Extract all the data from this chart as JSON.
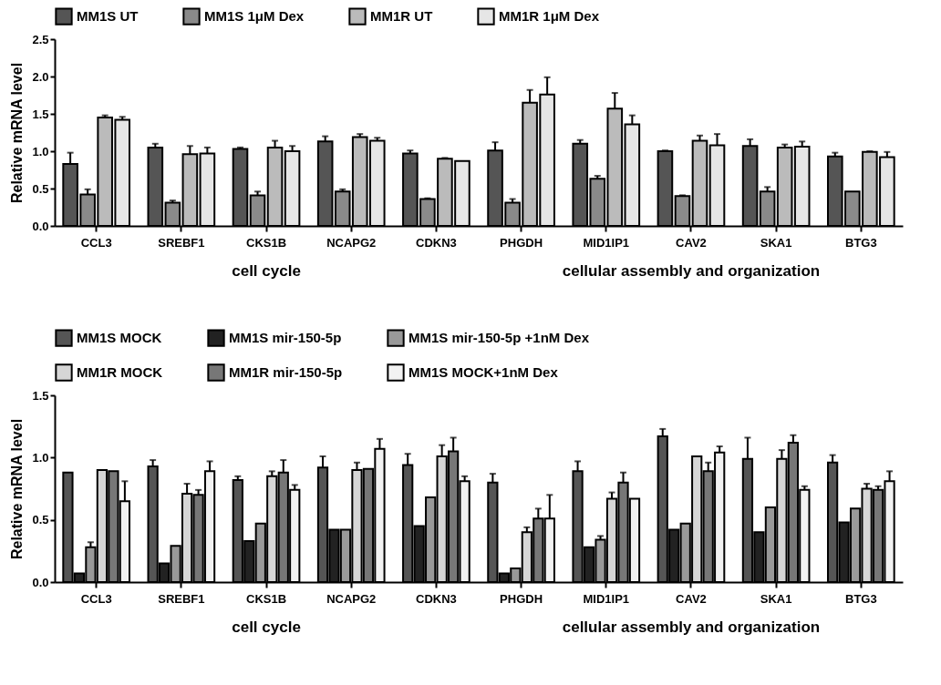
{
  "chart_data": [
    {
      "type": "bar",
      "ylabel": "Relative mRNA level",
      "categories": [
        "CCL3",
        "SREBF1",
        "CKS1B",
        "NCAPG2",
        "CDKN3",
        "PHGDH",
        "MID1IP1",
        "CAV2",
        "SKA1",
        "BTG3"
      ],
      "ylim": [
        0,
        2.5
      ],
      "yticks": [
        {
          "value": 0,
          "label": "0.0"
        },
        0.5,
        {
          "value": 1,
          "label": "1.0"
        },
        1.5,
        {
          "value": 2,
          "label": "2.0"
        },
        2.5
      ],
      "grid": false,
      "legend": "top",
      "annotations": [
        "cell cycle",
        "cellular assembly and organization"
      ],
      "series": [
        {
          "name": "MM1S UT",
          "color": "#555555",
          "values": [
            0.83,
            1.05,
            1.03,
            1.13,
            0.97,
            1.01,
            1.1,
            1.0,
            1.07,
            0.93
          ],
          "errors": [
            0.15,
            0.05,
            0.02,
            0.07,
            0.04,
            0.11,
            0.05,
            0.01,
            0.09,
            0.05
          ]
        },
        {
          "name": "MM1S 1μM Dex",
          "color": "#8a8a8a",
          "values": [
            0.42,
            0.31,
            0.41,
            0.46,
            0.36,
            0.31,
            0.63,
            0.4,
            0.46,
            0.46
          ],
          "errors": [
            0.07,
            0.03,
            0.05,
            0.03,
            0.01,
            0.05,
            0.04,
            0.01,
            0.06,
            null
          ]
        },
        {
          "name": "MM1R UT",
          "color": "#bbbbbb",
          "values": [
            1.45,
            0.96,
            1.05,
            1.19,
            0.9,
            1.65,
            1.57,
            1.14,
            1.05,
            0.99
          ],
          "errors": [
            0.03,
            0.11,
            0.09,
            0.04,
            0.01,
            0.17,
            0.21,
            0.07,
            0.04,
            0.01
          ]
        },
        {
          "name": "MM1R 1μM Dex",
          "color": "#e6e6e6",
          "values": [
            1.42,
            0.97,
            1.0,
            1.14,
            0.87,
            1.76,
            1.36,
            1.08,
            1.06,
            0.92
          ],
          "errors": [
            0.04,
            0.08,
            0.07,
            0.04,
            null,
            0.23,
            0.12,
            0.15,
            0.07,
            0.07
          ]
        }
      ]
    },
    {
      "type": "bar",
      "ylabel": "Relative mRNA level",
      "categories": [
        "CCL3",
        "SREBF1",
        "CKS1B",
        "NCAPG2",
        "CDKN3",
        "PHGDH",
        "MID1IP1",
        "CAV2",
        "SKA1",
        "BTG3"
      ],
      "ylim": [
        0,
        1.5
      ],
      "yticks": [
        {
          "value": 0,
          "label": "0.0"
        },
        0.5,
        {
          "value": 1,
          "label": "1.0"
        },
        1.5
      ],
      "grid": false,
      "legend": "top",
      "annotations": [
        "cell cycle",
        "cellular assembly and organization"
      ],
      "series": [
        {
          "name": "MM1S MOCK",
          "color": "#555555",
          "values": [
            0.88,
            0.93,
            0.82,
            0.92,
            0.94,
            0.8,
            0.89,
            1.17,
            0.99,
            0.96
          ],
          "errors": [
            null,
            0.05,
            0.03,
            0.09,
            0.09,
            0.07,
            0.08,
            0.06,
            0.17,
            0.06
          ]
        },
        {
          "name": "MM1S mir-150-5p",
          "color": "#222222",
          "values": [
            0.07,
            0.15,
            0.33,
            0.42,
            0.45,
            0.07,
            0.28,
            0.42,
            0.4,
            0.48
          ],
          "errors": [
            null,
            null,
            null,
            null,
            null,
            null,
            null,
            null,
            null,
            null
          ]
        },
        {
          "name": "MM1S mir-150-5p +1nM Dex",
          "color": "#999999",
          "values": [
            0.28,
            0.29,
            0.47,
            0.42,
            0.68,
            0.11,
            0.34,
            0.47,
            0.6,
            0.59
          ],
          "errors": [
            0.04,
            null,
            null,
            null,
            null,
            null,
            0.03,
            null,
            null,
            null
          ]
        },
        {
          "name": "MM1R MOCK",
          "color": "#d6d6d6",
          "values": [
            0.9,
            0.71,
            0.85,
            0.9,
            1.01,
            0.4,
            0.67,
            1.01,
            0.99,
            0.75
          ],
          "errors": [
            null,
            0.08,
            0.04,
            0.06,
            0.09,
            0.04,
            0.05,
            null,
            0.07,
            0.04
          ]
        },
        {
          "name": "MM1R mir-150-5p",
          "color": "#777777",
          "values": [
            0.89,
            0.7,
            0.88,
            0.91,
            1.05,
            0.51,
            0.8,
            0.89,
            1.12,
            0.74
          ],
          "errors": [
            null,
            0.04,
            0.1,
            null,
            0.11,
            0.08,
            0.08,
            0.07,
            0.06,
            0.03
          ]
        },
        {
          "name": "MM1S MOCK+1nM Dex",
          "color": "#f2f2f2",
          "values": [
            0.65,
            0.89,
            0.74,
            1.07,
            0.81,
            0.51,
            0.67,
            1.04,
            0.74,
            0.81
          ],
          "errors": [
            0.16,
            0.08,
            0.04,
            0.08,
            0.04,
            0.19,
            null,
            0.05,
            0.03,
            0.08
          ]
        }
      ]
    }
  ]
}
